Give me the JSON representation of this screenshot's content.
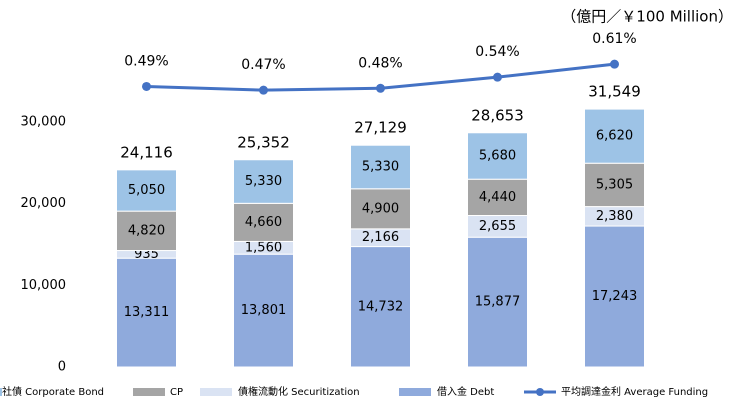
{
  "chart_data": {
    "type": "bar",
    "stacked": true,
    "annotation": "（億円／￥100 Million）",
    "categories": [
      null,
      null,
      null,
      null,
      null
    ],
    "series": [
      {
        "name": "借入金 Debt",
        "color": "#8faadc",
        "values": [
          13311,
          13801,
          14732,
          15877,
          17243
        ],
        "value_labels": [
          "13,311",
          "13,801",
          "14,732",
          "15,877",
          "17,243"
        ]
      },
      {
        "name": "債権流動化 Securitization",
        "color": "#dae3f3",
        "values": [
          935,
          1560,
          2166,
          2655,
          2380
        ],
        "value_labels": [
          "935",
          "1,560",
          "2,166",
          "2,655",
          "2,380"
        ]
      },
      {
        "name": "CP",
        "color": "#a5a5a5",
        "values": [
          4820,
          4660,
          4900,
          4440,
          5305
        ],
        "value_labels": [
          "4,820",
          "4,660",
          "4,900",
          "4,440",
          "5,305"
        ]
      },
      {
        "name": "社債 Corporate Bond",
        "color": "#9dc3e6",
        "values": [
          5050,
          5330,
          5330,
          5680,
          6620
        ],
        "value_labels": [
          "5,050",
          "5,330",
          "5,330",
          "5,680",
          "6,620"
        ]
      },
      {
        "name": "平均調達金利 Average Funding",
        "type": "line",
        "axis": "y2",
        "color": "#4472c4",
        "values": [
          0.49,
          0.47,
          0.48,
          0.54,
          0.61
        ],
        "value_labels": [
          "0.49%",
          "0.47%",
          "0.48%",
          "0.54%",
          "0.61%"
        ]
      }
    ],
    "total_labels": [
      "24,116",
      "25,352",
      "27,129",
      "28,653",
      "31,549"
    ],
    "ylim": [
      0,
      40000
    ],
    "yticks": [
      0,
      {
        "value": 10000,
        "label": "10,000"
      },
      {
        "value": 20000,
        "label": "20,000"
      },
      {
        "value": 30000,
        "label": "30,000"
      }
    ],
    "y2lim": [
      -1.02,
      0.74
    ],
    "grid": false
  }
}
